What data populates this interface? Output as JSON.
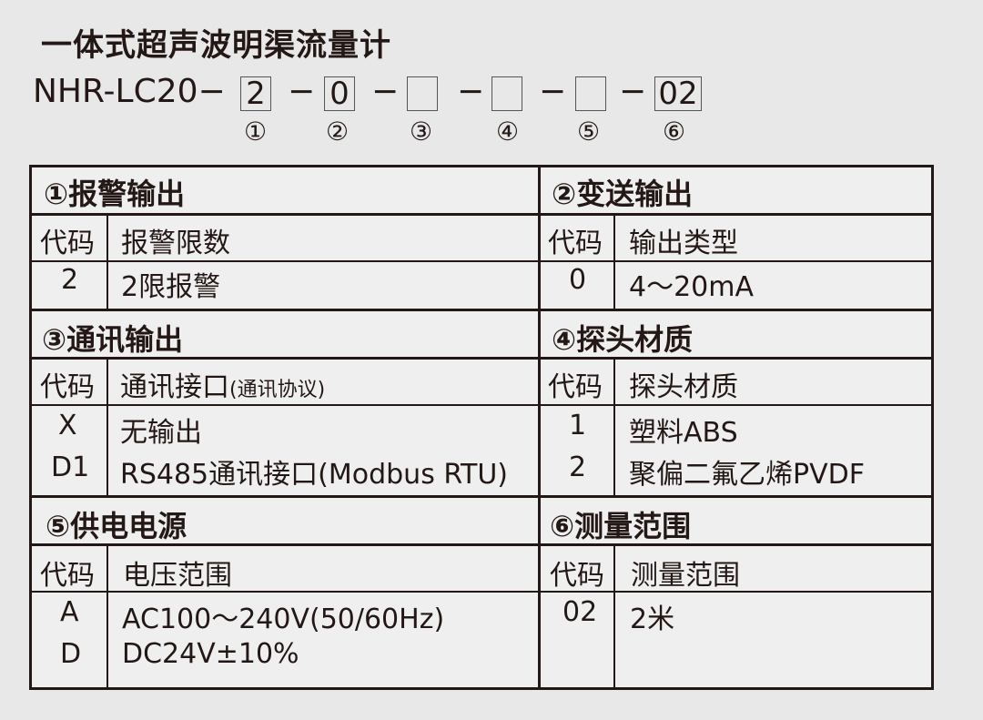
{
  "title": "一体式超声波明渠流量计",
  "model": {
    "prefix": "NHR-LC20−",
    "codes": [
      "2",
      "0",
      "",
      "",
      "",
      "02"
    ],
    "dash": "−",
    "markers": [
      "①",
      "②",
      "③",
      "④",
      "⑤",
      "⑥"
    ]
  },
  "colors": {
    "line": "#231815",
    "background": "#e9e8e8",
    "cell": "#efefef"
  },
  "sections": [
    {
      "title": "①报警输出",
      "headers": [
        "代码",
        "报警限数"
      ],
      "rows": [
        [
          "2",
          "2限报警"
        ]
      ]
    },
    {
      "title": "②变送输出",
      "headers": [
        "代码",
        "输出类型"
      ],
      "rows": [
        [
          "0",
          "4～20mA"
        ]
      ]
    },
    {
      "title": "③通讯输出",
      "headers": [
        "代码",
        "通讯接口",
        "(通讯协议)"
      ],
      "rows": [
        [
          "X",
          "无输出"
        ],
        [
          "D1",
          "RS485通讯接口(Modbus RTU)"
        ]
      ]
    },
    {
      "title": "④探头材质",
      "headers": [
        "代码",
        "探头材质"
      ],
      "rows": [
        [
          "1",
          "塑料ABS"
        ],
        [
          "2",
          "聚偏二氟乙烯PVDF"
        ]
      ]
    },
    {
      "title": "⑤供电电源",
      "headers": [
        "代码",
        "电压范围"
      ],
      "rows": [
        [
          "A",
          "AC100～240V(50/60Hz)"
        ],
        [
          "D",
          "DC24V±10%"
        ]
      ]
    },
    {
      "title": "⑥测量范围",
      "headers": [
        "代码",
        "测量范围"
      ],
      "rows": [
        [
          "02",
          "2米"
        ]
      ]
    }
  ]
}
